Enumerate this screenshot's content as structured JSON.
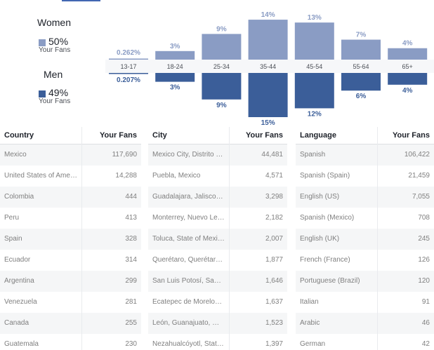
{
  "legend": {
    "women": {
      "title": "Women",
      "pct": "50%",
      "sub": "Your Fans",
      "color": "#8a9cc4"
    },
    "men": {
      "title": "Men",
      "pct": "49%",
      "sub": "Your Fans",
      "color": "#3b5e99"
    }
  },
  "chart_data": {
    "type": "bar",
    "categories": [
      "13-17",
      "18-24",
      "25-34",
      "35-44",
      "45-54",
      "55-64",
      "65+"
    ],
    "series": [
      {
        "name": "Women",
        "values": [
          0.262,
          3,
          9,
          14,
          13,
          7,
          4
        ],
        "labels": [
          "0.262%",
          "3%",
          "9%",
          "14%",
          "13%",
          "7%",
          "4%"
        ]
      },
      {
        "name": "Men",
        "values": [
          0.207,
          3,
          9,
          15,
          12,
          6,
          4
        ],
        "labels": [
          "0.207%",
          "3%",
          "9%",
          "15%",
          "12%",
          "6%",
          "4%"
        ]
      }
    ],
    "ylim": [
      0,
      15
    ]
  },
  "tables": {
    "country": {
      "header_name": "Country",
      "header_value": "Your Fans",
      "rows": [
        {
          "name": "Mexico",
          "value": "117,690"
        },
        {
          "name": "United States of America",
          "value": "14,288"
        },
        {
          "name": "Colombia",
          "value": "444"
        },
        {
          "name": "Peru",
          "value": "413"
        },
        {
          "name": "Spain",
          "value": "328"
        },
        {
          "name": "Ecuador",
          "value": "314"
        },
        {
          "name": "Argentina",
          "value": "299"
        },
        {
          "name": "Venezuela",
          "value": "281"
        },
        {
          "name": "Canada",
          "value": "255"
        },
        {
          "name": "Guatemala",
          "value": "230"
        }
      ]
    },
    "city": {
      "header_name": "City",
      "header_value": "Your Fans",
      "rows": [
        {
          "name": "Mexico City, Distrito Fe...",
          "value": "44,481"
        },
        {
          "name": "Puebla, Mexico",
          "value": "4,571"
        },
        {
          "name": "Guadalajara, Jalisco, ...",
          "value": "3,298"
        },
        {
          "name": "Monterrey, Nuevo León...",
          "value": "2,182"
        },
        {
          "name": "Toluca, State of Mexico...",
          "value": "2,007"
        },
        {
          "name": "Querétaro, Querétaro ...",
          "value": "1,877"
        },
        {
          "name": "San Luis Potosí, San L...",
          "value": "1,646"
        },
        {
          "name": "Ecatepec de Morelos, ...",
          "value": "1,637"
        },
        {
          "name": "León, Guanajuato, Mex...",
          "value": "1,523"
        },
        {
          "name": "Nezahualcóyotl, State ...",
          "value": "1,397"
        }
      ]
    },
    "language": {
      "header_name": "Language",
      "header_value": "Your Fans",
      "rows": [
        {
          "name": "Spanish",
          "value": "106,422"
        },
        {
          "name": "Spanish (Spain)",
          "value": "21,459"
        },
        {
          "name": "English (US)",
          "value": "7,055"
        },
        {
          "name": "Spanish (Mexico)",
          "value": "708"
        },
        {
          "name": "English (UK)",
          "value": "245"
        },
        {
          "name": "French (France)",
          "value": "126"
        },
        {
          "name": "Portuguese (Brazil)",
          "value": "120"
        },
        {
          "name": "Italian",
          "value": "91"
        },
        {
          "name": "Arabic",
          "value": "46"
        },
        {
          "name": "German",
          "value": "42"
        }
      ]
    }
  }
}
